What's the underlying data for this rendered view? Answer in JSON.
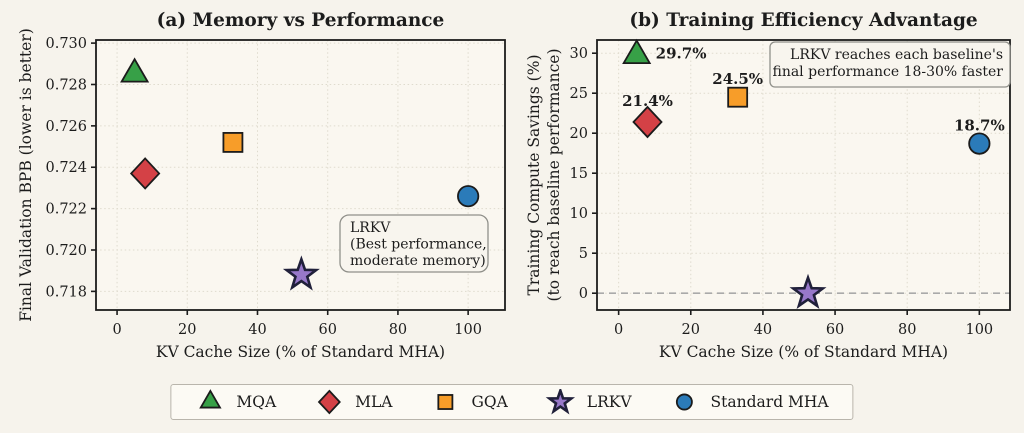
{
  "colors": {
    "background": "#f6f3ec",
    "axes_background": "#faf7f0",
    "grid": "#dfdbce",
    "spine": "#1c1c1c",
    "text": "#1c1c1c",
    "dashed_line": "#aaaaaa",
    "annotation_border": "#90908a",
    "annotation_fill": "#f8f5ee",
    "legend_border": "#b9b5ac",
    "legend_fill": "#fcfaf4"
  },
  "legend": {
    "items": [
      {
        "label": "MQA",
        "marker": "triangle",
        "color": "#37a047"
      },
      {
        "label": "MLA",
        "marker": "diamond",
        "color": "#d44146"
      },
      {
        "label": "GQA",
        "marker": "square",
        "color": "#f79d29"
      },
      {
        "label": "LRKV",
        "marker": "star",
        "color": "#9778c9"
      },
      {
        "label": "Standard MHA",
        "marker": "circle",
        "color": "#2b7bb9"
      }
    ]
  },
  "chart_data": [
    {
      "type": "scatter",
      "title": "(a) Memory vs Performance",
      "xlabel": "KV Cache Size (% of Standard MHA)",
      "ylabel_lines": [
        "Final Validation BPB (lower is better)"
      ],
      "xlim": [
        -6,
        110.5
      ],
      "ylim": [
        0.7171,
        0.73015
      ],
      "xticks": [
        0,
        20,
        40,
        60,
        80,
        100
      ],
      "xtick_labels": [
        "0",
        "20",
        "40",
        "60",
        "80",
        "100"
      ],
      "yticks": [
        0.718,
        0.72,
        0.722,
        0.724,
        0.726,
        0.728,
        0.73
      ],
      "ytick_labels": [
        "0.718",
        "0.720",
        "0.722",
        "0.724",
        "0.726",
        "0.728",
        "0.730"
      ],
      "grid": true,
      "points": [
        {
          "name": "MQA",
          "marker": "triangle",
          "color": "#37a047",
          "x": 5,
          "y": 0.7285
        },
        {
          "name": "MLA",
          "marker": "diamond",
          "color": "#d44146",
          "x": 8,
          "y": 0.7237
        },
        {
          "name": "GQA",
          "marker": "square",
          "color": "#f79d29",
          "x": 33,
          "y": 0.7252
        },
        {
          "name": "LRKV",
          "marker": "star",
          "color": "#9778c9",
          "x": 52.5,
          "y": 0.7188
        },
        {
          "name": "Standard MHA",
          "marker": "circle",
          "color": "#2b7bb9",
          "x": 100,
          "y": 0.7226
        }
      ],
      "annotation": {
        "lines": [
          "LRKV",
          "(Best performance,",
          "moderate memory)"
        ]
      }
    },
    {
      "type": "scatter",
      "title": "(b) Training Efficiency Advantage",
      "xlabel": "KV Cache Size (% of Standard MHA)",
      "ylabel_lines": [
        "Training Compute Savings (%)",
        "(to reach baseline performance)"
      ],
      "xlim": [
        -6,
        108.5
      ],
      "ylim": [
        -2.1,
        31.65
      ],
      "xticks": [
        0,
        20,
        40,
        60,
        80,
        100
      ],
      "xtick_labels": [
        "0",
        "20",
        "40",
        "60",
        "80",
        "100"
      ],
      "yticks": [
        0,
        5,
        10,
        15,
        20,
        25,
        30
      ],
      "ytick_labels": [
        "0",
        "5",
        "10",
        "15",
        "20",
        "25",
        "30"
      ],
      "grid": true,
      "hline": {
        "y": 0,
        "style": "dashed"
      },
      "points": [
        {
          "name": "MQA",
          "marker": "triangle",
          "color": "#37a047",
          "x": 5,
          "y": 29.7,
          "label": "29.7%",
          "label_color": "#2e9b3c"
        },
        {
          "name": "MLA",
          "marker": "diamond",
          "color": "#d44146",
          "x": 8,
          "y": 21.4,
          "label": "21.4%",
          "label_color": "#cc3038"
        },
        {
          "name": "GQA",
          "marker": "square",
          "color": "#f79d29",
          "x": 33,
          "y": 24.5,
          "label": "24.5%",
          "label_color": "#f1901c"
        },
        {
          "name": "LRKV",
          "marker": "star",
          "color": "#9778c9",
          "x": 52.5,
          "y": 0,
          "label": null,
          "label_color": null
        },
        {
          "name": "Standard MHA",
          "marker": "circle",
          "color": "#2b7bb9",
          "x": 100,
          "y": 18.7,
          "label": "18.7%",
          "label_color": "#2b7bb9"
        }
      ],
      "annotation": {
        "lines": [
          "LRKV reaches each baseline's",
          "final performance 18-30% faster"
        ]
      }
    }
  ]
}
